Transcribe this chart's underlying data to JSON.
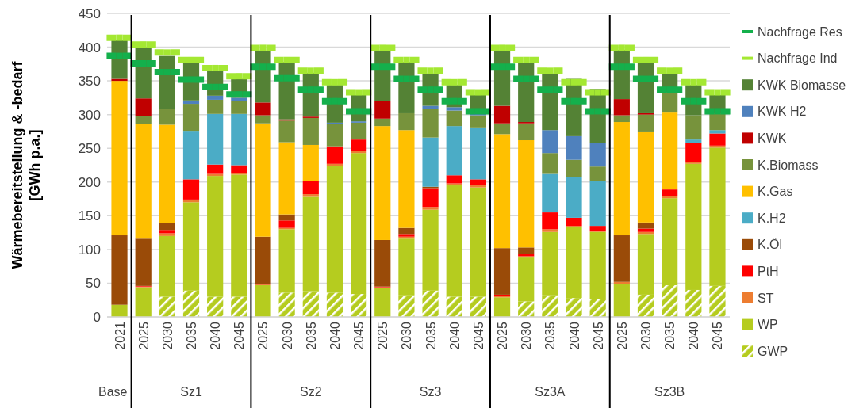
{
  "chart_data": {
    "type": "bar",
    "stacked": true,
    "ylabel": "Wärmebereitstellung & -bedarf\n[GWh p.a.]",
    "ylim": [
      0,
      450
    ],
    "yticks": [
      0,
      50,
      100,
      150,
      200,
      250,
      300,
      350,
      400,
      450
    ],
    "grid": "y",
    "legend": "right",
    "categories": [
      "2021",
      "2025",
      "2030",
      "2035",
      "2040",
      "2045",
      "2025",
      "2030",
      "2035",
      "2040",
      "2045",
      "2025",
      "2030",
      "2035",
      "2040",
      "2045",
      "2025",
      "2030",
      "2035",
      "2040",
      "2045",
      "2025",
      "2030",
      "2035",
      "2040",
      "2045"
    ],
    "annotations": [
      "Base",
      "Sz1",
      "Sz2",
      "Sz3",
      "Sz3A",
      "Sz3B"
    ],
    "series": [
      {
        "name": "GWP",
        "color": "#b5cc1f",
        "values": [
          0,
          0,
          30,
          39,
          30,
          30,
          0,
          36,
          38,
          36,
          34,
          0,
          32,
          39,
          30,
          30,
          0,
          23,
          32,
          28,
          27,
          0,
          33,
          47,
          40,
          46
        ]
      },
      {
        "name": "WP",
        "color": "#b5cc1f",
        "values": [
          18,
          44,
          90,
          131,
          179,
          181,
          47,
          94,
          140,
          188,
          209,
          43,
          84,
          120,
          165,
          162,
          29,
          65,
          94,
          105,
          99,
          49,
          90,
          129,
          187,
          205
        ]
      },
      {
        "name": "ST",
        "color": "#ed7d31",
        "values": [
          0,
          1,
          4,
          4,
          3,
          2,
          1,
          2,
          4,
          3,
          3,
          1,
          3,
          4,
          3,
          3,
          2,
          2,
          4,
          2,
          2,
          3,
          3,
          3,
          3,
          3
        ]
      },
      {
        "name": "PtH",
        "color": "#ff0000",
        "values": [
          0,
          1,
          5,
          30,
          14,
          12,
          1,
          11,
          20,
          26,
          17,
          1,
          4,
          28,
          12,
          9,
          2,
          4,
          25,
          12,
          7,
          0,
          5,
          10,
          28,
          18
        ]
      },
      {
        "name": "K.Öl",
        "color": "#9a4b08",
        "values": [
          103,
          70,
          10,
          null,
          0,
          0,
          70,
          9,
          0,
          0,
          0,
          69,
          9,
          2,
          0,
          0,
          69,
          9,
          0,
          0,
          0,
          69,
          9,
          0,
          0,
          0
        ]
      },
      {
        "name": "K.H2",
        "color": "#4bacc6",
        "values": [
          0,
          0,
          0,
          72,
          75,
          76,
          0,
          0,
          0,
          0,
          0,
          0,
          0,
          73,
          73,
          77,
          0,
          0,
          57,
          60,
          66,
          0,
          0,
          0,
          5,
          5
        ]
      },
      {
        "name": "K.Gas",
        "color": "#ffc000",
        "values": [
          229,
          170,
          146,
          0,
          0,
          0,
          168,
          107,
          53,
          0,
          0,
          169,
          145,
          0,
          0,
          0,
          169,
          159,
          0,
          0,
          0,
          168,
          135,
          114,
          0,
          0
        ]
      },
      {
        "name": "K.Biomass",
        "color": "#77933c",
        "values": [
          0,
          12,
          24,
          40,
          21,
          19,
          12,
          32,
          40,
          33,
          25,
          11,
          25,
          42,
          23,
          18,
          16,
          25,
          31,
          26,
          22,
          10,
          25,
          30,
          36,
          24
        ]
      },
      {
        "name": "KWK",
        "color": "#c00000",
        "values": [
          3,
          26,
          0,
          0,
          0,
          0,
          19,
          2,
          2,
          0,
          0,
          26,
          0,
          0,
          0,
          0,
          26,
          2,
          0,
          0,
          0,
          24,
          2,
          0,
          0,
          0
        ]
      },
      {
        "name": "KWK H2",
        "color": "#4f81bd",
        "values": [
          0,
          0,
          0,
          5,
          6,
          5,
          0,
          0,
          0,
          2,
          2,
          0,
          0,
          5,
          5,
          3,
          0,
          0,
          34,
          35,
          35,
          0,
          0,
          0,
          0,
          0
        ]
      },
      {
        "name": "KWK Biomasse",
        "color": "#548235",
        "values": [
          58,
          76,
          78,
          55,
          37,
          28,
          77,
          85,
          65,
          56,
          39,
          75,
          76,
          48,
          33,
          27,
          82,
          88,
          84,
          85,
          80,
          73,
          75,
          28,
          45,
          28
        ]
      },
      {
        "name": "Nachfrage Ind",
        "type": "scatter",
        "marker": "square",
        "color": "#a4e832",
        "values": [
          414,
          404,
          392,
          381,
          369,
          357,
          399,
          381,
          365,
          348,
          333,
          399,
          381,
          365,
          348,
          333,
          399,
          381,
          365,
          348,
          333,
          399,
          381,
          365,
          348,
          333
        ]
      },
      {
        "name": "Nachfrage Res",
        "type": "scatter",
        "marker": "square",
        "color": "#14b04c",
        "values": [
          387,
          376,
          363,
          352,
          341,
          330,
          371,
          354,
          337,
          320,
          305,
          371,
          353,
          337,
          320,
          305,
          371,
          353,
          337,
          320,
          305,
          371,
          353,
          337,
          320,
          305
        ]
      }
    ]
  }
}
